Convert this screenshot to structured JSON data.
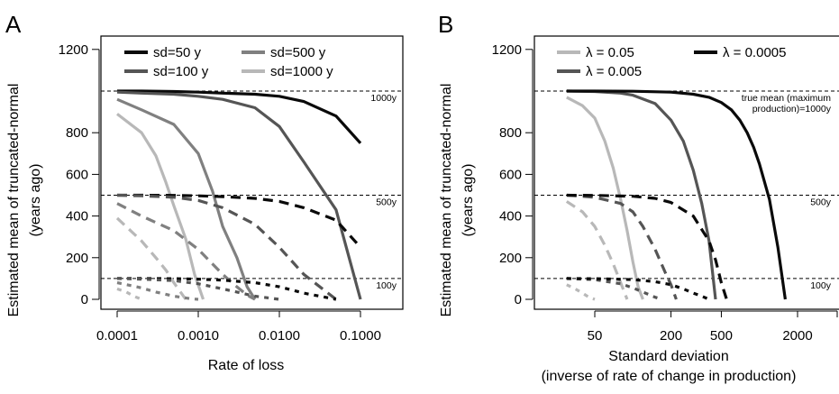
{
  "chart_data": [
    {
      "panel": "A",
      "type": "line",
      "xscale": "log",
      "xlabel": "Rate of loss",
      "ylabel": [
        "Estimated mean of truncated-normal",
        "(years ago)"
      ],
      "xlim": [
        0.0001,
        0.1
      ],
      "ylim": [
        0,
        1200
      ],
      "x_ticks": [
        0.0001,
        0.001,
        0.01,
        0.1
      ],
      "x_tick_labels": [
        "0.0001",
        "0.0010",
        "0.0100",
        "0.1000"
      ],
      "y_ticks": [
        0,
        200,
        400,
        600,
        800,
        1200
      ],
      "y_tick_labels": [
        "0",
        "200",
        "400",
        "600",
        "800",
        "1200"
      ],
      "legend": {
        "placement": "top-left",
        "entries": [
          {
            "label": "sd=50 y",
            "color": "#0a0a0a"
          },
          {
            "label": "sd=100 y",
            "color": "#555555"
          },
          {
            "label": "sd=500 y",
            "color": "#808080"
          },
          {
            "label": "sd=1000 y",
            "color": "#b8b8b8"
          }
        ]
      },
      "reference_lines": [
        {
          "y": 1000,
          "label": "1000y"
        },
        {
          "y": 500,
          "label": "500y"
        },
        {
          "y": 100,
          "label": "100y"
        }
      ],
      "series": [
        {
          "legend": "sd=50 y",
          "true_mean": 1000,
          "style": "solid",
          "color": "#0a0a0a",
          "x": [
            0.0001,
            0.0002,
            0.0005,
            0.001,
            0.002,
            0.005,
            0.01,
            0.02,
            0.05,
            0.1
          ],
          "y": [
            1000,
            1000,
            998,
            995,
            990,
            985,
            975,
            950,
            880,
            750
          ]
        },
        {
          "legend": "sd=100 y",
          "true_mean": 1000,
          "style": "solid",
          "color": "#555555",
          "x": [
            0.0001,
            0.0002,
            0.0005,
            0.001,
            0.002,
            0.005,
            0.01,
            0.02,
            0.05,
            0.1
          ],
          "y": [
            995,
            990,
            985,
            975,
            960,
            920,
            830,
            660,
            430,
            0
          ]
        },
        {
          "legend": "sd=500 y",
          "true_mean": 1000,
          "style": "solid",
          "color": "#808080",
          "x": [
            0.0001,
            0.0002,
            0.0005,
            0.001,
            0.0015,
            0.002,
            0.003,
            0.004,
            0.005
          ],
          "y": [
            960,
            910,
            840,
            700,
            520,
            350,
            200,
            60,
            0
          ]
        },
        {
          "legend": "sd=1000 y",
          "true_mean": 1000,
          "style": "solid",
          "color": "#b8b8b8",
          "x": [
            0.0001,
            0.0002,
            0.0003,
            0.0004,
            0.0005,
            0.0007,
            0.0009,
            0.00115
          ],
          "y": [
            890,
            800,
            690,
            560,
            450,
            290,
            120,
            0
          ]
        },
        {
          "legend": "sd=50 y",
          "true_mean": 500,
          "style": "dashed",
          "color": "#0a0a0a",
          "x": [
            0.0001,
            0.0002,
            0.0005,
            0.001,
            0.002,
            0.005,
            0.01,
            0.02,
            0.05,
            0.1
          ],
          "y": [
            500,
            500,
            499,
            497,
            493,
            485,
            470,
            440,
            380,
            250
          ]
        },
        {
          "legend": "sd=100 y",
          "true_mean": 500,
          "style": "dashed",
          "color": "#555555",
          "x": [
            0.0001,
            0.0002,
            0.0005,
            0.001,
            0.002,
            0.005,
            0.01,
            0.02,
            0.05
          ],
          "y": [
            500,
            497,
            490,
            475,
            440,
            360,
            250,
            120,
            0
          ]
        },
        {
          "legend": "sd=500 y",
          "true_mean": 500,
          "style": "dashed",
          "color": "#808080",
          "x": [
            0.0001,
            0.0002,
            0.0005,
            0.001,
            0.002,
            0.003,
            0.004,
            0.005
          ],
          "y": [
            460,
            400,
            330,
            240,
            120,
            60,
            20,
            0
          ]
        },
        {
          "legend": "sd=1000 y",
          "true_mean": 500,
          "style": "dashed",
          "color": "#b8b8b8",
          "x": [
            0.0001,
            0.0002,
            0.0003,
            0.0004,
            0.0005,
            0.0007
          ],
          "y": [
            390,
            280,
            200,
            140,
            80,
            0
          ]
        },
        {
          "legend": "sd=50 y",
          "true_mean": 100,
          "style": "dotted",
          "color": "#0a0a0a",
          "x": [
            0.0001,
            0.0002,
            0.0005,
            0.001,
            0.002,
            0.005,
            0.01,
            0.02,
            0.05
          ],
          "y": [
            100,
            100,
            99,
            97,
            92,
            80,
            60,
            30,
            0
          ]
        },
        {
          "legend": "sd=100 y",
          "true_mean": 100,
          "style": "dotted",
          "color": "#555555",
          "x": [
            0.0001,
            0.0002,
            0.0005,
            0.001,
            0.002,
            0.005,
            0.01
          ],
          "y": [
            100,
            97,
            90,
            75,
            50,
            15,
            0
          ]
        },
        {
          "legend": "sd=500 y",
          "true_mean": 100,
          "style": "dotted",
          "color": "#808080",
          "x": [
            0.0001,
            0.0002,
            0.0003,
            0.0005,
            0.0008,
            0.001
          ],
          "y": [
            80,
            55,
            35,
            15,
            3,
            0
          ]
        },
        {
          "legend": "sd=1000 y",
          "true_mean": 100,
          "style": "dotted",
          "color": "#b8b8b8",
          "x": [
            0.0001,
            0.00013,
            0.00016,
            0.0002
          ],
          "y": [
            50,
            35,
            15,
            0
          ]
        }
      ]
    },
    {
      "panel": "B",
      "type": "line",
      "xscale": "log",
      "xlabel": [
        "Standard deviation",
        "(inverse of rate of change in production)"
      ],
      "ylabel": [
        "Estimated mean of truncated-normal",
        "(years ago)"
      ],
      "xlim": [
        25,
        5000
      ],
      "ylim": [
        0,
        1200
      ],
      "x_ticks": [
        50,
        200,
        500,
        2000
      ],
      "x_tick_labels": [
        "50",
        "200",
        "500",
        "2000"
      ],
      "y_ticks": [
        0,
        200,
        400,
        600,
        800,
        1200
      ],
      "y_tick_labels": [
        "0",
        "200",
        "400",
        "600",
        "800",
        "1200"
      ],
      "legend": {
        "placement": "top",
        "entries": [
          {
            "label": "λ = 0.05",
            "color": "#b8b8b8"
          },
          {
            "label": "λ = 0.0005",
            "color": "#0a0a0a"
          },
          {
            "label": "λ = 0.005",
            "color": "#555555"
          }
        ]
      },
      "reference_lines": [
        {
          "y": 1000,
          "label": [
            "true mean (maximum",
            "production)=1000y"
          ]
        },
        {
          "y": 500,
          "label": "500y"
        },
        {
          "y": 100,
          "label": "100y"
        }
      ],
      "series": [
        {
          "legend": "λ = 0.05",
          "true_mean": 1000,
          "style": "solid",
          "color": "#b8b8b8",
          "x": [
            30,
            40,
            50,
            60,
            70,
            80,
            90,
            100,
            110,
            120
          ],
          "y": [
            970,
            930,
            870,
            760,
            630,
            480,
            330,
            180,
            60,
            0
          ]
        },
        {
          "legend": "λ = 0.005",
          "true_mean": 1000,
          "style": "solid",
          "color": "#555555",
          "x": [
            30,
            50,
            80,
            100,
            150,
            200,
            250,
            300,
            350,
            400,
            450
          ],
          "y": [
            1000,
            998,
            990,
            980,
            940,
            860,
            760,
            620,
            460,
            280,
            0
          ]
        },
        {
          "legend": "λ = 0.0005",
          "true_mean": 1000,
          "style": "solid",
          "color": "#0a0a0a",
          "x": [
            30,
            50,
            100,
            200,
            300,
            400,
            500,
            600,
            700,
            800,
            900,
            1000,
            1200,
            1400,
            1600
          ],
          "y": [
            1000,
            1000,
            999,
            995,
            985,
            970,
            945,
            910,
            860,
            800,
            730,
            650,
            480,
            250,
            0
          ]
        },
        {
          "legend": "λ = 0.05",
          "true_mean": 500,
          "style": "dashed",
          "color": "#b8b8b8",
          "x": [
            30,
            40,
            50,
            60,
            70,
            80,
            90
          ],
          "y": [
            470,
            420,
            350,
            260,
            170,
            80,
            0
          ]
        },
        {
          "legend": "λ = 0.005",
          "true_mean": 500,
          "style": "dashed",
          "color": "#555555",
          "x": [
            30,
            50,
            80,
            100,
            120,
            150,
            180,
            200,
            220
          ],
          "y": [
            500,
            490,
            460,
            420,
            350,
            240,
            130,
            70,
            0
          ]
        },
        {
          "legend": "λ = 0.0005",
          "true_mean": 500,
          "style": "dashed",
          "color": "#0a0a0a",
          "x": [
            30,
            50,
            100,
            150,
            200,
            300,
            400,
            450,
            500,
            550
          ],
          "y": [
            500,
            499,
            495,
            485,
            465,
            400,
            280,
            190,
            80,
            0
          ]
        },
        {
          "legend": "λ = 0.05",
          "true_mean": 100,
          "style": "dotted",
          "color": "#b8b8b8",
          "x": [
            30,
            35,
            40,
            45,
            50
          ],
          "y": [
            70,
            50,
            30,
            10,
            0
          ]
        },
        {
          "legend": "λ = 0.005",
          "true_mean": 100,
          "style": "dotted",
          "color": "#555555",
          "x": [
            30,
            50,
            80,
            100,
            120,
            150,
            170
          ],
          "y": [
            100,
            95,
            75,
            55,
            35,
            10,
            0
          ]
        },
        {
          "legend": "λ = 0.0005",
          "true_mean": 100,
          "style": "dotted",
          "color": "#0a0a0a",
          "x": [
            30,
            50,
            100,
            150,
            200,
            250,
            300,
            350,
            400
          ],
          "y": [
            100,
            99,
            95,
            85,
            70,
            50,
            30,
            15,
            0
          ]
        }
      ]
    }
  ]
}
